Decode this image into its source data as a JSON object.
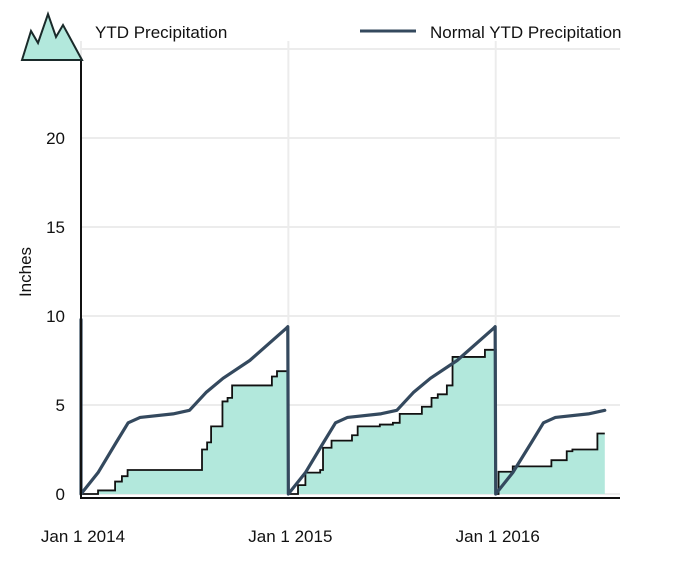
{
  "chart_data": {
    "type": "area",
    "title": "",
    "xlabel": "",
    "ylabel": "Inches",
    "ylim": [
      0,
      25
    ],
    "xlim": [
      "2014-01-01",
      "2016-07-11"
    ],
    "yticks": [
      0,
      5,
      10,
      15,
      20
    ],
    "xticks": [
      {
        "date": "2014-01-01",
        "label": "Jan 1 2014"
      },
      {
        "date": "2015-01-01",
        "label": "Jan 1 2015"
      },
      {
        "date": "2016-01-01",
        "label": "Jan 1 2016"
      }
    ],
    "grid": true,
    "legend_position": "top",
    "colors": {
      "fill": "#b2e8dc",
      "actual_line": "#111111",
      "normal_line": "#34495e",
      "grid": "#ececec"
    },
    "series": [
      {
        "name": "YTD Precipitation",
        "kind": "step-area",
        "points": [
          [
            "2014-01-01",
            0
          ],
          [
            "2014-01-31",
            0.2
          ],
          [
            "2014-03-02",
            0.7
          ],
          [
            "2014-03-14",
            1.0
          ],
          [
            "2014-03-24",
            1.35
          ],
          [
            "2014-08-02",
            2.5
          ],
          [
            "2014-08-11",
            2.9
          ],
          [
            "2014-08-18",
            3.8
          ],
          [
            "2014-09-07",
            5.2
          ],
          [
            "2014-09-16",
            5.4
          ],
          [
            "2014-09-24",
            6.1
          ],
          [
            "2014-12-03",
            6.6
          ],
          [
            "2014-12-12",
            6.9
          ],
          [
            "2015-01-01",
            0
          ],
          [
            "2015-01-18",
            0.5
          ],
          [
            "2015-01-31",
            1.2
          ],
          [
            "2015-02-26",
            1.35
          ],
          [
            "2015-03-03",
            2.6
          ],
          [
            "2015-03-18",
            3.0
          ],
          [
            "2015-04-23",
            3.3
          ],
          [
            "2015-05-03",
            3.8
          ],
          [
            "2015-06-11",
            3.9
          ],
          [
            "2015-07-04",
            4.0
          ],
          [
            "2015-07-16",
            4.5
          ],
          [
            "2015-08-24",
            4.9
          ],
          [
            "2015-09-10",
            5.4
          ],
          [
            "2015-09-21",
            5.6
          ],
          [
            "2015-10-07",
            6.1
          ],
          [
            "2015-10-17",
            7.7
          ],
          [
            "2015-12-13",
            8.1
          ],
          [
            "2016-01-01",
            0
          ],
          [
            "2016-01-06",
            1.25
          ],
          [
            "2016-01-31",
            1.55
          ],
          [
            "2016-04-08",
            1.9
          ],
          [
            "2016-05-05",
            2.4
          ],
          [
            "2016-05-15",
            2.5
          ],
          [
            "2016-06-28",
            3.4
          ],
          [
            "2016-07-11",
            3.4
          ]
        ]
      },
      {
        "name": "Normal YTD Precipitation",
        "kind": "line",
        "points": [
          [
            "2014-01-01",
            9.8
          ],
          [
            "2014-01-01",
            0
          ],
          [
            "2014-01-31",
            1.2
          ],
          [
            "2014-03-04",
            2.9
          ],
          [
            "2014-03-25",
            4.0
          ],
          [
            "2014-04-15",
            4.3
          ],
          [
            "2014-06-12",
            4.5
          ],
          [
            "2014-07-11",
            4.7
          ],
          [
            "2014-08-09",
            5.7
          ],
          [
            "2014-09-08",
            6.5
          ],
          [
            "2014-10-25",
            7.5
          ],
          [
            "2014-12-28",
            9.3
          ],
          [
            "2014-12-31",
            9.4
          ],
          [
            "2015-01-01",
            0
          ],
          [
            "2015-01-31",
            1.2
          ],
          [
            "2015-03-04",
            2.9
          ],
          [
            "2015-03-25",
            4.0
          ],
          [
            "2015-04-15",
            4.3
          ],
          [
            "2015-06-12",
            4.5
          ],
          [
            "2015-07-11",
            4.7
          ],
          [
            "2015-08-09",
            5.7
          ],
          [
            "2015-09-08",
            6.5
          ],
          [
            "2015-10-25",
            7.5
          ],
          [
            "2015-12-28",
            9.3
          ],
          [
            "2015-12-31",
            9.4
          ],
          [
            "2016-01-01",
            0
          ],
          [
            "2016-01-31",
            1.2
          ],
          [
            "2016-03-04",
            2.9
          ],
          [
            "2016-03-25",
            4.0
          ],
          [
            "2016-04-15",
            4.3
          ],
          [
            "2016-06-12",
            4.5
          ],
          [
            "2016-07-11",
            4.7
          ]
        ]
      }
    ],
    "legend": [
      "YTD Precipitation",
      "Normal YTD Precipitation"
    ]
  }
}
